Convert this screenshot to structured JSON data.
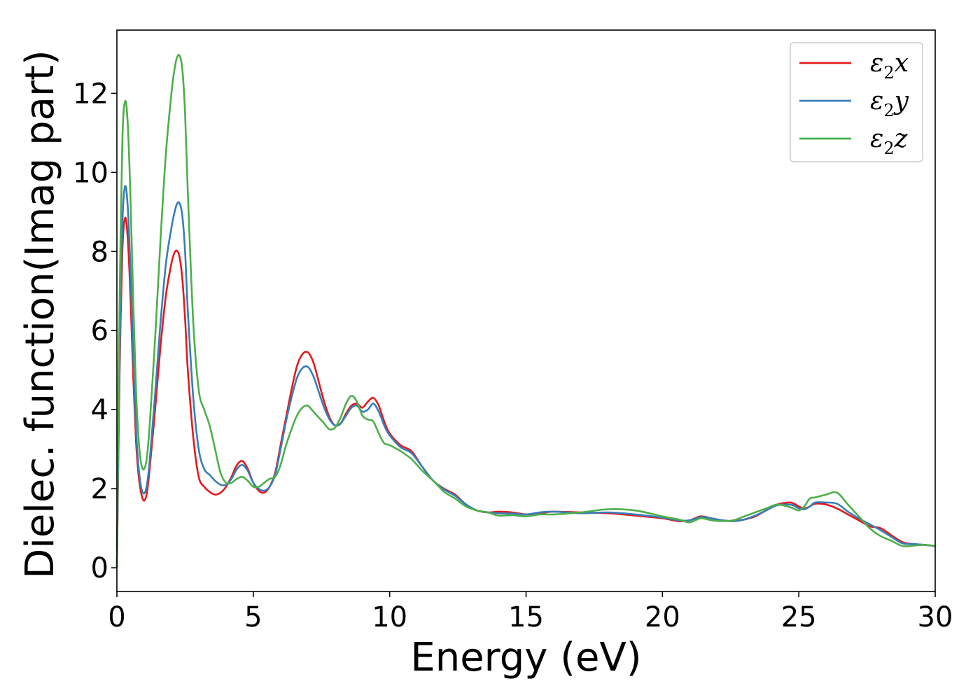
{
  "chart_data": {
    "type": "line",
    "xlabel": "Energy (eV)",
    "ylabel": "Dielec. function(Imag part)",
    "xlim": [
      0,
      30
    ],
    "ylim": [
      -0.6,
      13.6
    ],
    "xticks": [
      0,
      5,
      10,
      15,
      20,
      25,
      30
    ],
    "yticks": [
      0,
      2,
      4,
      6,
      8,
      10,
      12
    ],
    "grid": false,
    "legend_position": "top-right",
    "series": [
      {
        "name": "ε₂x",
        "legend_base": "ε",
        "legend_sub": "2",
        "legend_var": "x",
        "color": "#e41a1c",
        "x": [
          0,
          0.05,
          0.1,
          0.2,
          0.3,
          0.4,
          0.5,
          0.6,
          0.7,
          0.8,
          0.9,
          1.0,
          1.1,
          1.2,
          1.4,
          1.6,
          1.8,
          2.0,
          2.1,
          2.2,
          2.3,
          2.4,
          2.5,
          2.6,
          2.8,
          3.0,
          3.2,
          3.4,
          3.6,
          3.8,
          4.0,
          4.2,
          4.4,
          4.6,
          4.8,
          5.0,
          5.2,
          5.4,
          5.6,
          5.8,
          6.0,
          6.2,
          6.4,
          6.6,
          6.8,
          7.0,
          7.2,
          7.4,
          7.6,
          7.8,
          8.0,
          8.2,
          8.4,
          8.6,
          8.8,
          9.0,
          9.2,
          9.4,
          9.6,
          9.8,
          10.0,
          10.4,
          10.8,
          11.2,
          11.6,
          12.0,
          12.4,
          12.8,
          13.2,
          13.6,
          14.0,
          14.5,
          15.0,
          15.5,
          16.0,
          17.0,
          18.0,
          19.0,
          20.0,
          20.6,
          21.0,
          21.4,
          21.8,
          22.2,
          22.6,
          23.0,
          23.4,
          23.8,
          24.2,
          24.6,
          24.8,
          25.0,
          25.2,
          25.4,
          25.6,
          26.0,
          26.4,
          26.8,
          27.2,
          27.6,
          28.0,
          28.4,
          28.8,
          29.2,
          29.6,
          30.0
        ],
        "y": [
          0.0,
          2.5,
          5.0,
          8.0,
          8.85,
          8.3,
          6.8,
          4.8,
          3.2,
          2.3,
          1.85,
          1.7,
          1.9,
          2.5,
          4.0,
          5.6,
          6.9,
          7.7,
          7.95,
          8.02,
          7.85,
          7.3,
          6.3,
          5.0,
          3.3,
          2.3,
          2.05,
          1.92,
          1.85,
          1.9,
          2.05,
          2.3,
          2.6,
          2.7,
          2.5,
          2.15,
          1.95,
          1.9,
          2.05,
          2.4,
          3.1,
          3.8,
          4.5,
          5.1,
          5.4,
          5.45,
          5.2,
          4.7,
          4.2,
          3.8,
          3.6,
          3.65,
          3.9,
          4.1,
          4.15,
          4.05,
          4.2,
          4.3,
          4.1,
          3.7,
          3.4,
          3.1,
          2.95,
          2.55,
          2.2,
          2.0,
          1.85,
          1.6,
          1.45,
          1.4,
          1.42,
          1.4,
          1.35,
          1.38,
          1.42,
          1.4,
          1.38,
          1.32,
          1.25,
          1.18,
          1.2,
          1.3,
          1.25,
          1.2,
          1.18,
          1.22,
          1.3,
          1.45,
          1.6,
          1.65,
          1.63,
          1.55,
          1.5,
          1.55,
          1.62,
          1.6,
          1.5,
          1.35,
          1.2,
          1.05,
          1.0,
          0.82,
          0.65,
          0.6,
          0.58,
          0.55
        ]
      },
      {
        "name": "ε₂y",
        "legend_base": "ε",
        "legend_sub": "2",
        "legend_var": "y",
        "color": "#377eb8",
        "x": [
          0,
          0.05,
          0.1,
          0.2,
          0.3,
          0.4,
          0.5,
          0.6,
          0.7,
          0.8,
          0.9,
          1.0,
          1.1,
          1.2,
          1.4,
          1.6,
          1.8,
          2.0,
          2.1,
          2.2,
          2.3,
          2.4,
          2.5,
          2.6,
          2.8,
          3.0,
          3.2,
          3.4,
          3.6,
          3.8,
          4.0,
          4.2,
          4.4,
          4.6,
          4.8,
          5.0,
          5.2,
          5.4,
          5.6,
          5.8,
          6.0,
          6.2,
          6.4,
          6.6,
          6.8,
          7.0,
          7.2,
          7.4,
          7.6,
          7.8,
          8.0,
          8.2,
          8.4,
          8.6,
          8.8,
          9.0,
          9.2,
          9.4,
          9.6,
          9.8,
          10.0,
          10.4,
          10.8,
          11.2,
          11.6,
          12.0,
          12.4,
          12.8,
          13.2,
          13.6,
          14.0,
          14.5,
          15.0,
          15.5,
          16.0,
          17.0,
          18.0,
          19.0,
          20.0,
          20.6,
          21.0,
          21.4,
          21.8,
          22.2,
          22.6,
          23.0,
          23.4,
          23.8,
          24.2,
          24.6,
          24.8,
          25.0,
          25.2,
          25.4,
          25.6,
          26.0,
          26.4,
          26.8,
          27.2,
          27.6,
          28.0,
          28.4,
          28.8,
          29.2,
          29.6,
          30.0
        ],
        "y": [
          0.0,
          2.8,
          5.5,
          8.7,
          9.65,
          9.1,
          7.5,
          5.3,
          3.5,
          2.5,
          2.0,
          1.88,
          2.1,
          2.7,
          4.4,
          6.2,
          7.7,
          8.6,
          8.95,
          9.2,
          9.22,
          8.9,
          8.0,
          6.5,
          4.3,
          3.0,
          2.5,
          2.35,
          2.2,
          2.1,
          2.1,
          2.25,
          2.5,
          2.6,
          2.45,
          2.15,
          2.0,
          1.95,
          2.05,
          2.35,
          3.0,
          3.7,
          4.3,
          4.8,
          5.05,
          5.08,
          4.85,
          4.45,
          4.05,
          3.75,
          3.6,
          3.65,
          3.85,
          4.05,
          4.1,
          3.95,
          4.0,
          4.15,
          3.95,
          3.6,
          3.35,
          3.05,
          2.9,
          2.55,
          2.2,
          1.98,
          1.82,
          1.6,
          1.45,
          1.4,
          1.38,
          1.37,
          1.35,
          1.4,
          1.42,
          1.38,
          1.4,
          1.35,
          1.27,
          1.2,
          1.2,
          1.28,
          1.25,
          1.2,
          1.18,
          1.22,
          1.32,
          1.45,
          1.58,
          1.6,
          1.58,
          1.5,
          1.48,
          1.55,
          1.65,
          1.65,
          1.62,
          1.42,
          1.25,
          1.1,
          0.95,
          0.78,
          0.62,
          0.6,
          0.58,
          0.55
        ]
      },
      {
        "name": "ε₂z",
        "legend_base": "ε",
        "legend_sub": "2",
        "legend_var": "z",
        "color": "#4daf4a",
        "x": [
          0,
          0.05,
          0.1,
          0.2,
          0.3,
          0.4,
          0.5,
          0.6,
          0.7,
          0.8,
          0.9,
          1.0,
          1.1,
          1.2,
          1.4,
          1.6,
          1.8,
          2.0,
          2.1,
          2.2,
          2.3,
          2.4,
          2.5,
          2.6,
          2.8,
          3.0,
          3.2,
          3.4,
          3.6,
          3.8,
          4.0,
          4.2,
          4.4,
          4.6,
          4.8,
          5.0,
          5.2,
          5.4,
          5.6,
          5.8,
          6.0,
          6.2,
          6.4,
          6.6,
          6.8,
          7.0,
          7.2,
          7.4,
          7.6,
          7.8,
          8.0,
          8.2,
          8.4,
          8.6,
          8.8,
          9.0,
          9.2,
          9.4,
          9.6,
          9.8,
          10.0,
          10.4,
          10.8,
          11.2,
          11.6,
          12.0,
          12.4,
          12.8,
          13.2,
          13.6,
          14.0,
          14.5,
          15.0,
          15.5,
          16.0,
          17.0,
          18.0,
          19.0,
          20.0,
          20.6,
          21.0,
          21.4,
          21.8,
          22.2,
          22.6,
          23.0,
          23.4,
          23.8,
          24.2,
          24.6,
          24.8,
          25.0,
          25.2,
          25.4,
          25.6,
          26.0,
          26.4,
          26.8,
          27.2,
          27.6,
          28.0,
          28.4,
          28.8,
          29.2,
          29.6,
          30.0
        ],
        "y": [
          0.0,
          3.5,
          6.8,
          10.8,
          11.8,
          11.2,
          9.3,
          6.7,
          4.5,
          3.2,
          2.6,
          2.5,
          2.8,
          3.6,
          5.8,
          8.3,
          10.5,
          12.0,
          12.55,
          12.9,
          12.95,
          12.6,
          11.5,
          9.5,
          6.2,
          4.5,
          4.0,
          3.6,
          3.0,
          2.4,
          2.15,
          2.15,
          2.25,
          2.3,
          2.2,
          2.05,
          2.05,
          2.15,
          2.25,
          2.3,
          2.6,
          3.1,
          3.5,
          3.85,
          4.05,
          4.1,
          3.95,
          3.8,
          3.65,
          3.5,
          3.55,
          3.8,
          4.15,
          4.35,
          4.2,
          3.85,
          3.75,
          3.7,
          3.4,
          3.15,
          3.1,
          2.95,
          2.75,
          2.45,
          2.2,
          1.92,
          1.75,
          1.55,
          1.45,
          1.4,
          1.32,
          1.33,
          1.3,
          1.35,
          1.35,
          1.4,
          1.48,
          1.45,
          1.3,
          1.22,
          1.15,
          1.25,
          1.2,
          1.18,
          1.2,
          1.3,
          1.4,
          1.5,
          1.6,
          1.55,
          1.5,
          1.45,
          1.55,
          1.75,
          1.78,
          1.85,
          1.9,
          1.6,
          1.3,
          1.0,
          0.8,
          0.68,
          0.55,
          0.56,
          0.58,
          0.55
        ]
      }
    ]
  }
}
